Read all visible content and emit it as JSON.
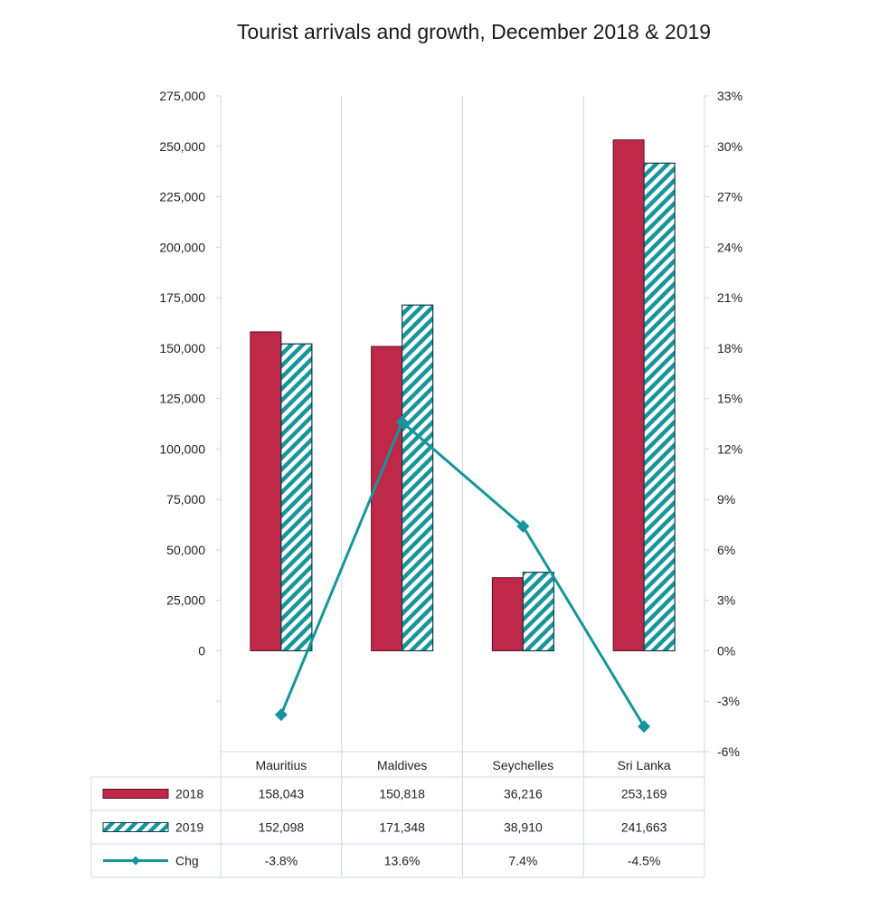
{
  "chart_data": {
    "type": "bar",
    "title": "Tourist arrivals and growth, December 2018 & 2019",
    "categories": [
      "Mauritius",
      "Maldives",
      "Seychelles",
      "Sri Lanka"
    ],
    "series": [
      {
        "name": "2018",
        "kind": "bar",
        "axis": "left",
        "color": "#c0284a",
        "values": [
          158043,
          150818,
          36216,
          253169
        ],
        "labels": [
          "158,043",
          "150,818",
          "36,216",
          "253,169"
        ]
      },
      {
        "name": "2019",
        "kind": "bar",
        "axis": "left",
        "pattern": "diagonal-hatch",
        "color": "#17959a",
        "values": [
          152098,
          171348,
          38910,
          241663
        ],
        "labels": [
          "152,098",
          "171,348",
          "38,910",
          "241,663"
        ]
      },
      {
        "name": "Chg",
        "kind": "line",
        "axis": "right",
        "marker": "diamond",
        "color": "#17959a",
        "values": [
          -3.8,
          13.6,
          7.4,
          -4.5
        ],
        "labels": [
          "-3.8%",
          "13.6%",
          "7.4%",
          "-4.5%"
        ]
      }
    ],
    "y_left": {
      "range": [
        -50000,
        275000
      ],
      "ticks": [
        0,
        25000,
        50000,
        75000,
        100000,
        125000,
        150000,
        175000,
        200000,
        225000,
        250000,
        275000
      ],
      "tick_labels": [
        "0",
        "25,000",
        "50,000",
        "75,000",
        "100,000",
        "125,000",
        "150,000",
        "175,000",
        "200,000",
        "225,000",
        "250,000",
        "275,000"
      ]
    },
    "y_right": {
      "range": [
        -6,
        33
      ],
      "ticks": [
        -6,
        -3,
        0,
        3,
        6,
        9,
        12,
        15,
        18,
        21,
        24,
        27,
        30,
        33
      ],
      "tick_labels": [
        "-6%",
        "-3%",
        "0%",
        "3%",
        "6%",
        "9%",
        "12%",
        "15%",
        "18%",
        "21%",
        "24%",
        "27%",
        "30%",
        "33%"
      ]
    },
    "grid": {
      "horizontal": false,
      "vertical": true
    },
    "legend": "data-table-below"
  }
}
